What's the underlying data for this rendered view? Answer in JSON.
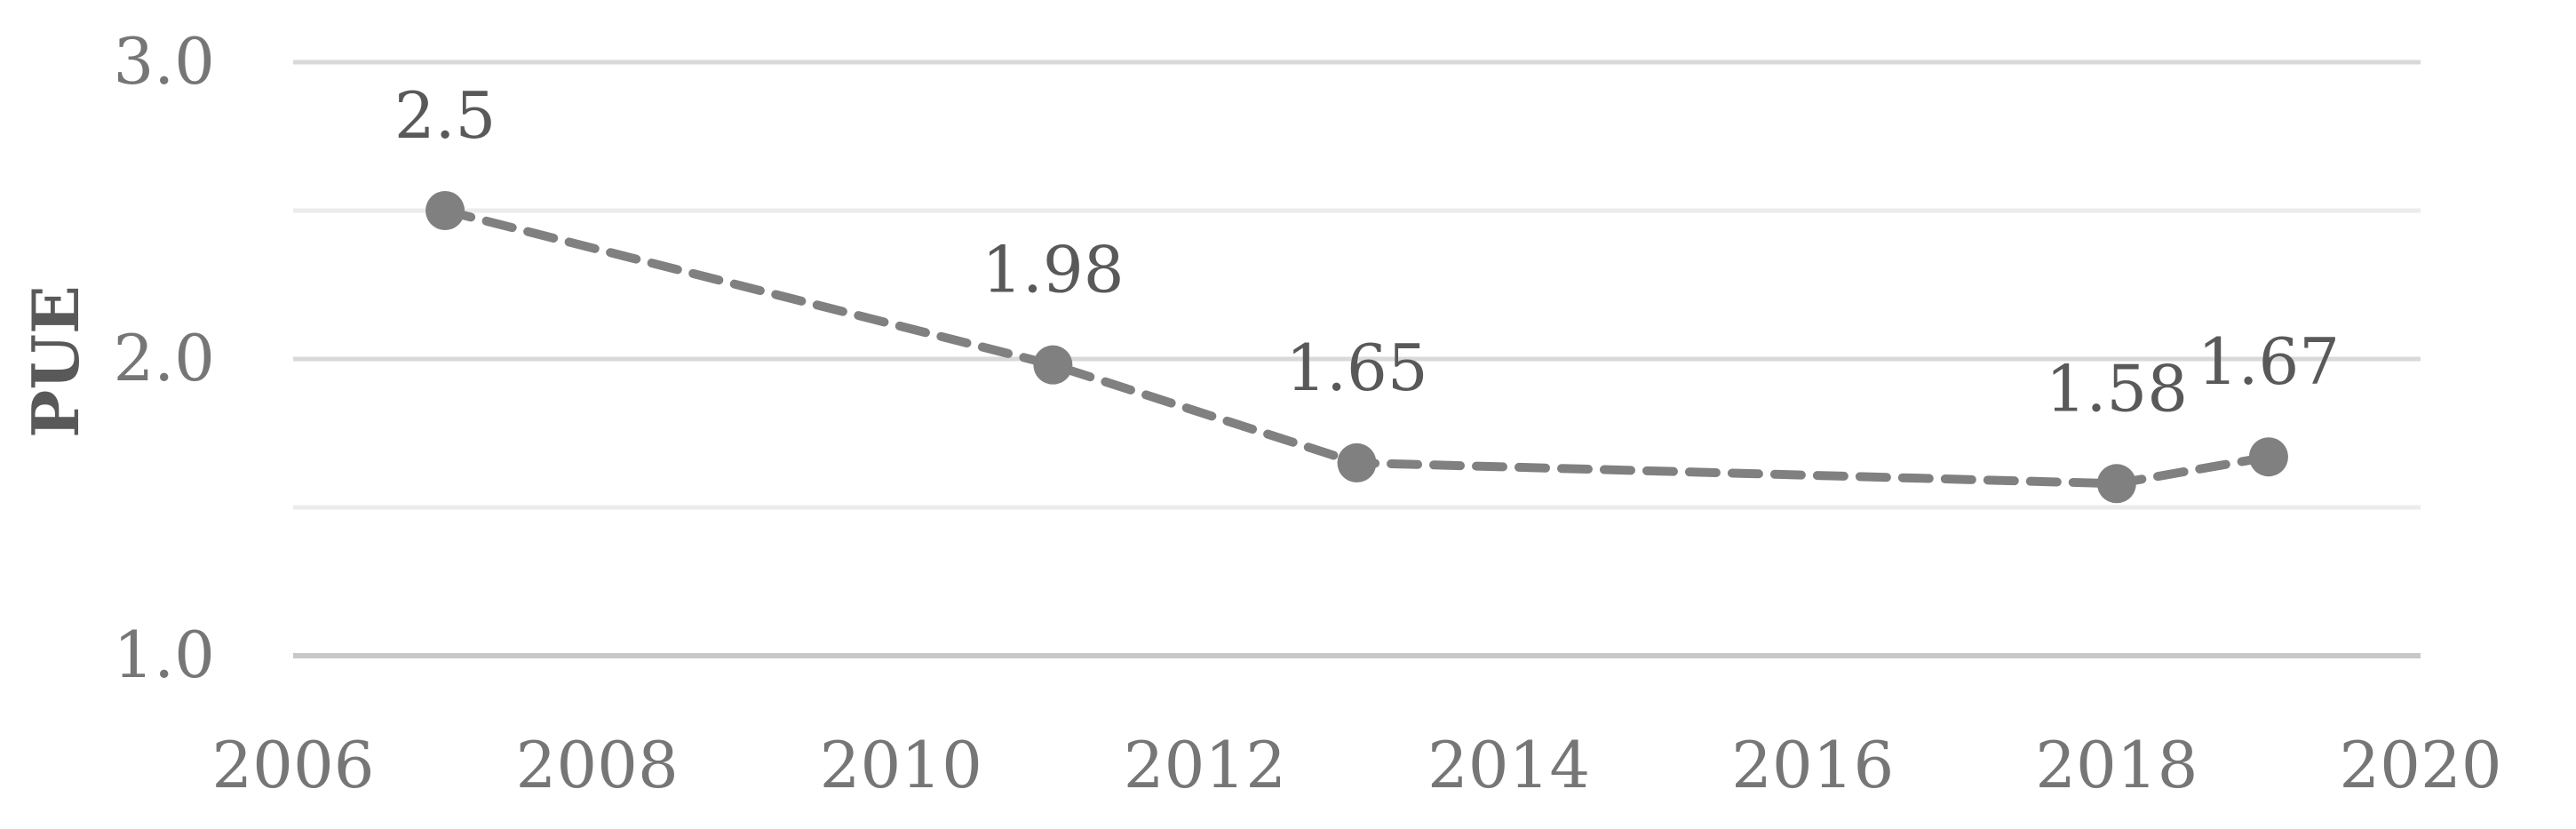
{
  "chart_data": {
    "type": "line",
    "title": "",
    "xlabel": "",
    "ylabel": "PUE",
    "xlim": [
      2006,
      2020
    ],
    "ylim": [
      1.0,
      3.0
    ],
    "x_ticks": [
      "2006",
      "2008",
      "2010",
      "2012",
      "2014",
      "2016",
      "2018",
      "2020"
    ],
    "y_ticks": [
      "1.0",
      "2.0",
      "3.0"
    ],
    "series": [
      {
        "x": [
          2007,
          2011,
          2013,
          2018,
          2019
        ],
        "values": [
          2.5,
          1.98,
          1.65,
          1.58,
          1.67
        ],
        "labels": [
          "2.5",
          "1.98",
          "1.65",
          "1.58",
          "1.67"
        ]
      }
    ],
    "line_style": "dashed",
    "marker": "circle",
    "grid": true,
    "legend": "none",
    "colors": {
      "line": "#808080",
      "grid": "#d9d9d9",
      "tick_text": "#767676",
      "label_text": "#595959"
    }
  }
}
